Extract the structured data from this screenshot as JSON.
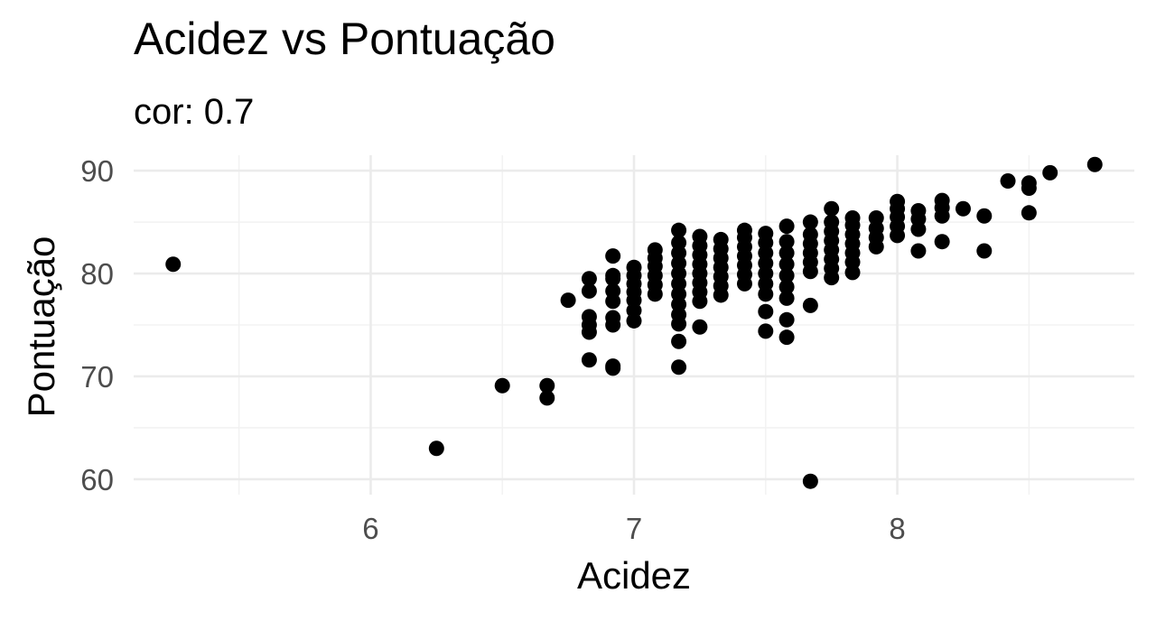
{
  "chart_data": {
    "type": "scatter",
    "title": "Acidez vs Pontuação",
    "subtitle": "cor: 0.7",
    "xlabel": "Acidez",
    "ylabel": "Pontuação",
    "xlim": [
      5.1,
      8.9
    ],
    "ylim": [
      58.5,
      91.5
    ],
    "x_ticks": [
      6,
      7,
      8
    ],
    "x_tick_labels": [
      "6",
      "7",
      "8"
    ],
    "y_ticks": [
      60,
      70,
      80,
      90
    ],
    "y_tick_labels": [
      "60",
      "70",
      "80",
      "90"
    ],
    "grid": true,
    "point_color": "#000000",
    "points": [
      [
        5.25,
        80.9
      ],
      [
        6.25,
        63.0
      ],
      [
        6.5,
        69.1
      ],
      [
        6.67,
        69.1
      ],
      [
        6.67,
        67.9
      ],
      [
        6.75,
        77.4
      ],
      [
        6.83,
        71.6
      ],
      [
        6.83,
        74.3
      ],
      [
        6.83,
        75.0
      ],
      [
        6.83,
        75.8
      ],
      [
        6.83,
        78.3
      ],
      [
        6.83,
        79.5
      ],
      [
        6.92,
        70.8
      ],
      [
        6.92,
        71.0
      ],
      [
        6.92,
        75.0
      ],
      [
        6.92,
        75.7
      ],
      [
        6.92,
        77.3
      ],
      [
        6.92,
        78.3
      ],
      [
        6.92,
        79.5
      ],
      [
        6.92,
        79.8
      ],
      [
        6.92,
        81.7
      ],
      [
        7.0,
        75.4
      ],
      [
        7.0,
        76.4
      ],
      [
        7.0,
        77.4
      ],
      [
        7.0,
        78.2
      ],
      [
        7.0,
        79.0
      ],
      [
        7.0,
        79.8
      ],
      [
        7.0,
        80.6
      ],
      [
        7.08,
        78.0
      ],
      [
        7.08,
        78.9
      ],
      [
        7.08,
        79.8
      ],
      [
        7.08,
        80.7
      ],
      [
        7.08,
        81.5
      ],
      [
        7.08,
        82.3
      ],
      [
        7.17,
        70.9
      ],
      [
        7.17,
        73.4
      ],
      [
        7.17,
        75.1
      ],
      [
        7.17,
        76.0
      ],
      [
        7.17,
        77.0
      ],
      [
        7.17,
        78.0
      ],
      [
        7.17,
        79.0
      ],
      [
        7.17,
        80.0
      ],
      [
        7.17,
        81.0
      ],
      [
        7.17,
        82.0
      ],
      [
        7.17,
        83.0
      ],
      [
        7.17,
        84.2
      ],
      [
        7.25,
        74.8
      ],
      [
        7.25,
        77.3
      ],
      [
        7.25,
        78.2
      ],
      [
        7.25,
        79.1
      ],
      [
        7.25,
        80.0
      ],
      [
        7.25,
        80.9
      ],
      [
        7.25,
        81.8
      ],
      [
        7.25,
        82.7
      ],
      [
        7.25,
        83.6
      ],
      [
        7.33,
        77.9
      ],
      [
        7.33,
        78.8
      ],
      [
        7.33,
        79.7
      ],
      [
        7.33,
        80.6
      ],
      [
        7.33,
        81.5
      ],
      [
        7.33,
        82.4
      ],
      [
        7.33,
        83.3
      ],
      [
        7.42,
        79.0
      ],
      [
        7.42,
        79.9
      ],
      [
        7.42,
        80.8
      ],
      [
        7.42,
        81.7
      ],
      [
        7.42,
        82.6
      ],
      [
        7.42,
        83.5
      ],
      [
        7.42,
        84.2
      ],
      [
        7.5,
        74.4
      ],
      [
        7.5,
        76.3
      ],
      [
        7.5,
        78.0
      ],
      [
        7.5,
        79.0
      ],
      [
        7.5,
        80.0
      ],
      [
        7.5,
        81.0
      ],
      [
        7.5,
        82.0
      ],
      [
        7.5,
        83.0
      ],
      [
        7.5,
        83.9
      ],
      [
        7.58,
        73.8
      ],
      [
        7.58,
        75.5
      ],
      [
        7.58,
        77.6
      ],
      [
        7.58,
        78.7
      ],
      [
        7.58,
        79.8
      ],
      [
        7.58,
        80.9
      ],
      [
        7.58,
        82.0
      ],
      [
        7.58,
        83.1
      ],
      [
        7.58,
        84.6
      ],
      [
        7.67,
        59.8
      ],
      [
        7.67,
        76.9
      ],
      [
        7.67,
        80.2
      ],
      [
        7.67,
        81.1
      ],
      [
        7.67,
        82.0
      ],
      [
        7.67,
        82.9
      ],
      [
        7.67,
        83.8
      ],
      [
        7.67,
        85.0
      ],
      [
        7.75,
        79.6
      ],
      [
        7.75,
        80.5
      ],
      [
        7.75,
        81.4
      ],
      [
        7.75,
        82.3
      ],
      [
        7.75,
        83.2
      ],
      [
        7.75,
        84.1
      ],
      [
        7.75,
        85.0
      ],
      [
        7.75,
        86.3
      ],
      [
        7.83,
        80.1
      ],
      [
        7.83,
        81.1
      ],
      [
        7.83,
        82.0
      ],
      [
        7.83,
        82.9
      ],
      [
        7.83,
        83.8
      ],
      [
        7.83,
        84.7
      ],
      [
        7.83,
        85.4
      ],
      [
        7.92,
        82.6
      ],
      [
        7.92,
        83.5
      ],
      [
        7.92,
        84.4
      ],
      [
        7.92,
        85.4
      ],
      [
        8.0,
        83.7
      ],
      [
        8.0,
        84.6
      ],
      [
        8.0,
        85.5
      ],
      [
        8.0,
        86.3
      ],
      [
        8.0,
        87.0
      ],
      [
        8.08,
        82.2
      ],
      [
        8.08,
        84.3
      ],
      [
        8.08,
        85.3
      ],
      [
        8.08,
        86.1
      ],
      [
        8.17,
        83.1
      ],
      [
        8.17,
        85.6
      ],
      [
        8.17,
        86.4
      ],
      [
        8.17,
        87.1
      ],
      [
        8.25,
        86.3
      ],
      [
        8.33,
        82.2
      ],
      [
        8.33,
        85.6
      ],
      [
        8.42,
        89.0
      ],
      [
        8.5,
        85.9
      ],
      [
        8.5,
        88.3
      ],
      [
        8.5,
        88.8
      ],
      [
        8.58,
        89.8
      ],
      [
        8.75,
        90.6
      ]
    ]
  }
}
